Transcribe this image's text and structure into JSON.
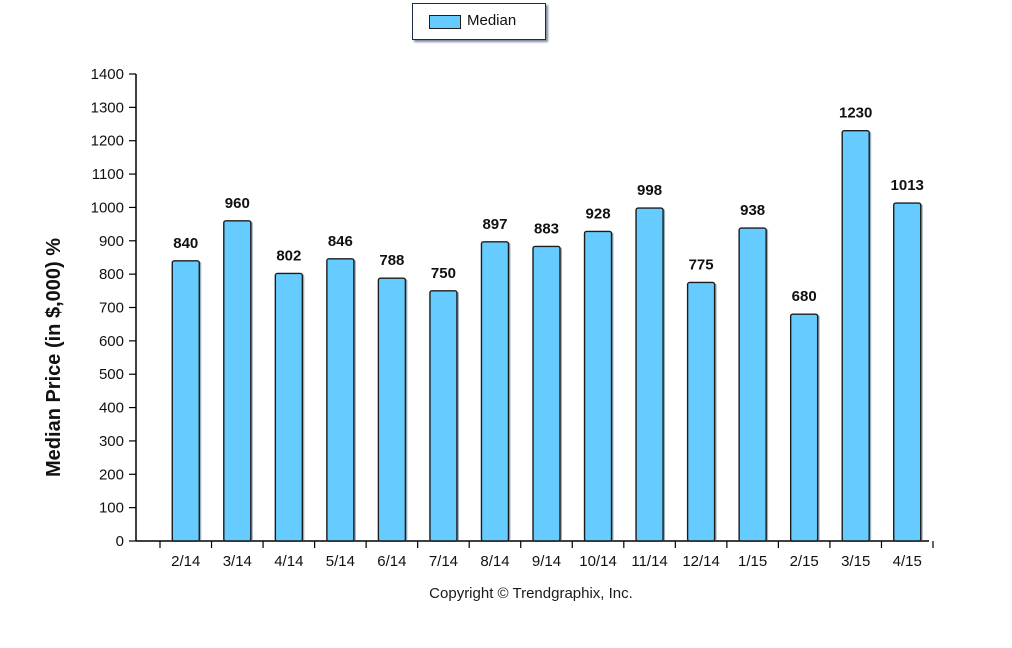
{
  "legend": {
    "label": "Median",
    "color": "#66ccff"
  },
  "copyright": "Copyright © Trendgraphix, Inc.",
  "chart_data": {
    "type": "bar",
    "title": "",
    "xlabel": "",
    "ylabel": "Median Price (in $,000) %",
    "ylim": [
      0,
      1400
    ],
    "yticks": [
      0,
      100,
      200,
      300,
      400,
      500,
      600,
      700,
      800,
      900,
      1000,
      1100,
      1200,
      1300,
      1400
    ],
    "categories": [
      "2/14",
      "3/14",
      "4/14",
      "5/14",
      "6/14",
      "7/14",
      "8/14",
      "9/14",
      "10/14",
      "11/14",
      "12/14",
      "1/15",
      "2/15",
      "3/15",
      "4/15"
    ],
    "series": [
      {
        "name": "Median",
        "values": [
          840,
          960,
          802,
          846,
          788,
          750,
          897,
          883,
          928,
          998,
          775,
          938,
          680,
          1230,
          1013
        ]
      }
    ],
    "grid": false,
    "legend_position": "top-center",
    "bar_color": "#66ccff"
  }
}
